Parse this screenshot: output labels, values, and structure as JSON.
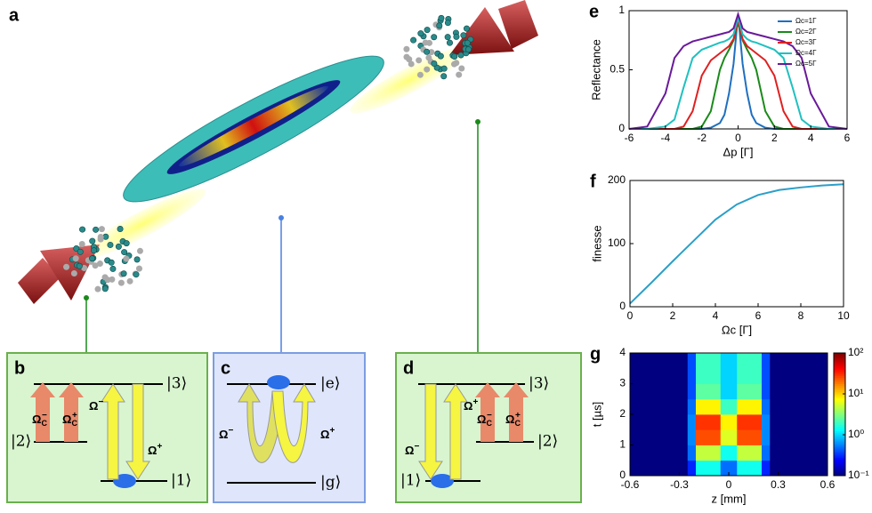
{
  "illustration": {
    "label": "a"
  },
  "diagrams": {
    "b": {
      "label": "b",
      "levels": {
        "top": "|3⟩",
        "middle": "|2⟩",
        "bottom": "|1⟩"
      },
      "couplings": [
        {
          "symbol": "Ω",
          "sup": "−",
          "sub": "C"
        },
        {
          "symbol": "Ω",
          "sup": "+",
          "sub": "C"
        },
        {
          "symbol": "Ω",
          "sup": "−"
        },
        {
          "symbol": "Ω",
          "sup": "+"
        }
      ]
    },
    "c": {
      "label": "c",
      "levels": {
        "top": "|e⟩",
        "bottom": "|g⟩"
      },
      "couplings": [
        {
          "symbol": "Ω",
          "sup": "−"
        },
        {
          "symbol": "Ω",
          "sup": "+"
        }
      ]
    },
    "d": {
      "label": "d",
      "levels": {
        "top": "|3⟩",
        "middle": "|2⟩",
        "bottom": "|1⟩"
      },
      "couplings": [
        {
          "symbol": "Ω",
          "sup": "−"
        },
        {
          "symbol": "Ω",
          "sup": "+"
        },
        {
          "symbol": "Ω",
          "sup": "−",
          "sub": "C"
        },
        {
          "symbol": "Ω",
          "sup": "+",
          "sub": "C"
        }
      ]
    }
  },
  "chart_data": [
    {
      "type": "line",
      "label": "e",
      "xlabel": "Δp [Γ]",
      "ylabel": "Reflectance",
      "legend": "upper right",
      "x": [
        -6,
        -5,
        -4,
        -3.5,
        -3,
        -2.5,
        -2,
        -1.5,
        -1,
        -0.75,
        -0.5,
        -0.25,
        0,
        0.25,
        0.5,
        0.75,
        1,
        1.5,
        2,
        2.5,
        3,
        3.5,
        4,
        5,
        6
      ],
      "series": [
        {
          "name": "Ωc=1Γ",
          "color": "#1f6fc0",
          "values": [
            0,
            0,
            0,
            0,
            0,
            0,
            0,
            0.01,
            0.05,
            0.12,
            0.3,
            0.55,
            0.97,
            0.55,
            0.3,
            0.12,
            0.05,
            0.01,
            0,
            0,
            0,
            0,
            0,
            0,
            0
          ]
        },
        {
          "name": "Ωc=2Γ",
          "color": "#1a8a1a",
          "values": [
            0,
            0,
            0,
            0,
            0,
            0,
            0.02,
            0.15,
            0.5,
            0.6,
            0.67,
            0.75,
            0.9,
            0.75,
            0.67,
            0.6,
            0.5,
            0.15,
            0.02,
            0,
            0,
            0,
            0,
            0,
            0
          ]
        },
        {
          "name": "Ωc=3Γ",
          "color": "#e02020",
          "values": [
            0,
            0,
            0,
            0,
            0.02,
            0.15,
            0.45,
            0.58,
            0.64,
            0.67,
            0.7,
            0.76,
            0.92,
            0.76,
            0.7,
            0.67,
            0.64,
            0.58,
            0.45,
            0.15,
            0.02,
            0,
            0,
            0,
            0
          ]
        },
        {
          "name": "Ωc=4Γ",
          "color": "#20c0c0",
          "values": [
            0,
            0,
            0.02,
            0.08,
            0.35,
            0.6,
            0.67,
            0.7,
            0.73,
            0.74,
            0.76,
            0.8,
            0.94,
            0.8,
            0.76,
            0.74,
            0.73,
            0.7,
            0.67,
            0.6,
            0.35,
            0.08,
            0.02,
            0,
            0
          ]
        },
        {
          "name": "Ωc=5Γ",
          "color": "#6a1a9a",
          "values": [
            0,
            0.02,
            0.3,
            0.6,
            0.7,
            0.74,
            0.76,
            0.78,
            0.8,
            0.81,
            0.82,
            0.85,
            0.97,
            0.85,
            0.82,
            0.81,
            0.8,
            0.78,
            0.76,
            0.74,
            0.7,
            0.6,
            0.3,
            0.02,
            0
          ]
        }
      ],
      "xlim": [
        -6,
        6
      ],
      "ylim": [
        0,
        1
      ],
      "xticks": [
        -6,
        -4,
        -2,
        0,
        2,
        4,
        6
      ],
      "yticks": [
        0,
        0.5,
        1
      ]
    },
    {
      "type": "line",
      "label": "f",
      "xlabel": "Ωc [Γ]",
      "ylabel": "finesse",
      "color": "#2a9fc9",
      "x": [
        0,
        1,
        2,
        3,
        4,
        5,
        6,
        7,
        8,
        9,
        10
      ],
      "values": [
        5,
        38,
        72,
        105,
        138,
        162,
        177,
        185,
        189,
        192,
        194
      ],
      "xlim": [
        0,
        10
      ],
      "ylim": [
        0,
        200
      ],
      "xticks": [
        0,
        2,
        4,
        6,
        8,
        10
      ],
      "yticks": [
        0,
        100,
        200
      ]
    },
    {
      "type": "heatmap",
      "label": "g",
      "xlabel": "z [mm]",
      "ylabel": "t [µs]",
      "xbins": [
        -0.6,
        -0.4,
        -0.3,
        -0.25,
        -0.2,
        -0.15,
        -0.1,
        -0.05,
        0,
        0.05,
        0.1,
        0.15,
        0.2,
        0.25,
        0.3,
        0.4,
        0.6
      ],
      "ybins": [
        0,
        0.5,
        1,
        1.5,
        2,
        2.5,
        3,
        3.5,
        4
      ],
      "values": [
        [
          0.1,
          0.1,
          0.1,
          0.3,
          1.5,
          1.5,
          1.5,
          0.5,
          0.5,
          1.5,
          1.5,
          1.5,
          0.3,
          0.1,
          0.1,
          0.1
        ],
        [
          0.1,
          0.1,
          0.1,
          0.5,
          5,
          5,
          5,
          1.5,
          1.5,
          5,
          5,
          5,
          0.5,
          0.1,
          0.1,
          0.1
        ],
        [
          0.1,
          0.1,
          0.1,
          0.6,
          25,
          25,
          25,
          6,
          6,
          25,
          25,
          25,
          0.6,
          0.1,
          0.1,
          0.1
        ],
        [
          0.1,
          0.1,
          0.1,
          0.6,
          30,
          30,
          30,
          8,
          8,
          30,
          30,
          30,
          0.6,
          0.1,
          0.1,
          0.1
        ],
        [
          0.1,
          0.1,
          0.1,
          0.5,
          8,
          8,
          8,
          2,
          2,
          8,
          8,
          8,
          0.5,
          0.1,
          0.1,
          0.1
        ],
        [
          0.1,
          0.1,
          0.1,
          0.4,
          2.5,
          2.5,
          2.5,
          1,
          1,
          2.5,
          2.5,
          2.5,
          0.4,
          0.1,
          0.1,
          0.1
        ],
        [
          0.1,
          0.1,
          0.1,
          0.4,
          2,
          2,
          2,
          1,
          1,
          2,
          2,
          2,
          0.4,
          0.1,
          0.1,
          0.1
        ],
        [
          0.1,
          0.1,
          0.1,
          0.4,
          2,
          2,
          2,
          1,
          1,
          2,
          2,
          2,
          0.4,
          0.1,
          0.1,
          0.1
        ]
      ],
      "xlim": [
        -0.6,
        0.6
      ],
      "ylim": [
        0,
        4
      ],
      "xticks": [
        -0.6,
        -0.3,
        0,
        0.3,
        0.6
      ],
      "yticks": [
        0,
        1,
        2,
        3,
        4
      ],
      "clim": [
        0.1,
        100
      ],
      "cscale": "log",
      "cticks": [
        {
          "value": 0.1,
          "label": "10⁻¹"
        },
        {
          "value": 1,
          "label": "10⁰"
        },
        {
          "value": 10,
          "label": "10¹"
        },
        {
          "value": 100,
          "label": "10²"
        }
      ]
    }
  ]
}
